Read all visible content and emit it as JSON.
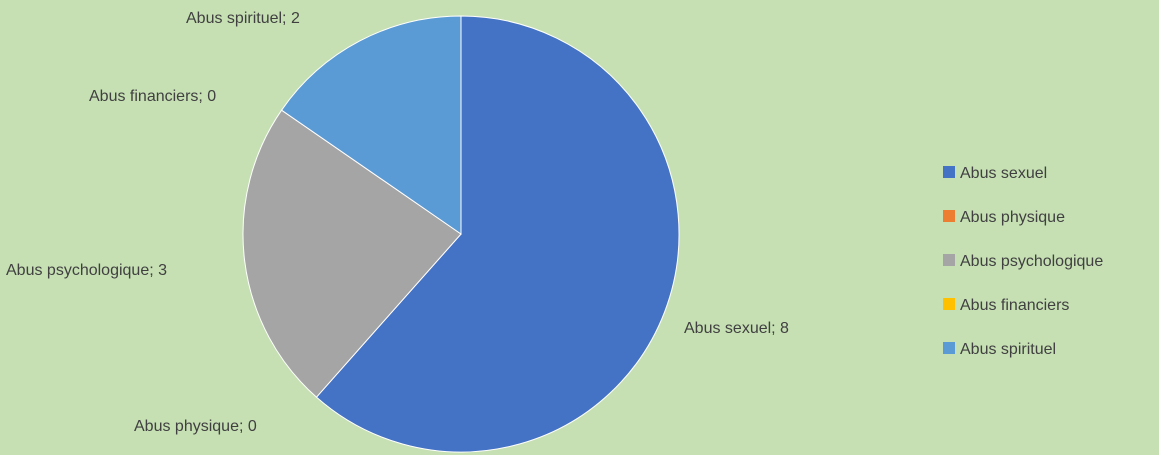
{
  "chart_data": {
    "type": "pie",
    "title": "",
    "categories": [
      "Abus sexuel",
      "Abus physique",
      "Abus psychologique",
      "Abus financiers",
      "Abus spirituel"
    ],
    "values": [
      8,
      0,
      3,
      0,
      2
    ],
    "colors": [
      "#4472c4",
      "#ed7d31",
      "#a5a5a5",
      "#ffc000",
      "#5b9bd5"
    ],
    "data_labels": [
      "Abus sexuel; 8",
      "Abus physique; 0",
      "Abus psychologique; 3",
      "Abus financiers; 0",
      "Abus spirituel; 2"
    ],
    "legend": {
      "position": "right",
      "entries": [
        "Abus sexuel",
        "Abus physique",
        "Abus psychologique",
        "Abus financiers",
        "Abus spirituel"
      ]
    },
    "background_color": "#c6e0b4"
  }
}
